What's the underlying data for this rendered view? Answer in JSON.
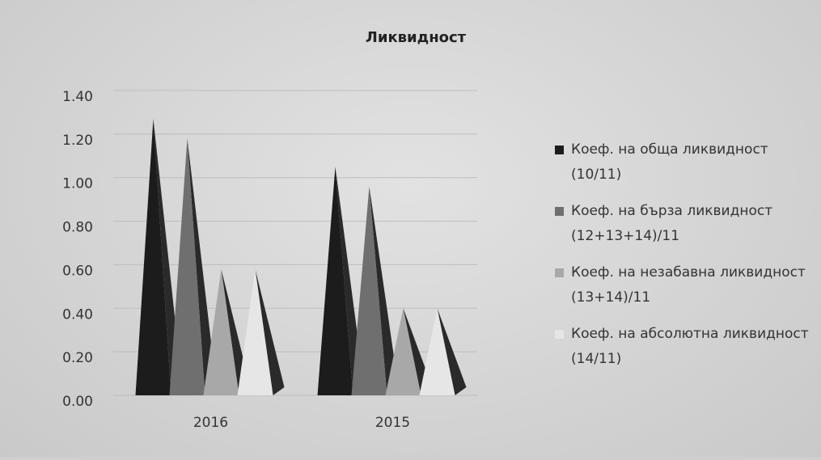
{
  "chart_data": {
    "type": "pyramid",
    "title": "Ликвидност",
    "categories": [
      "2016",
      "2015"
    ],
    "series": [
      {
        "name": "Коеф. на обща ликвидност (10/11)",
        "color": "#1c1c1c",
        "values": [
          1.27,
          1.05
        ]
      },
      {
        "name": "Коеф. на бърза ликвидност (12+13+14)/11",
        "color": "#6f6f6f",
        "values": [
          1.18,
          0.96
        ]
      },
      {
        "name": "Коеф. на незабавна ликвидност (13+14)/11",
        "color": "#a8a8a8",
        "values": [
          0.58,
          0.4
        ]
      },
      {
        "name": "Коеф. на абсолютна ликвидност (14/11)",
        "color": "#e6e6e6",
        "values": [
          0.58,
          0.4
        ]
      }
    ],
    "ylim": [
      0,
      1.4
    ],
    "yticks": [
      {
        "value": 0,
        "label": "0.00"
      },
      {
        "value": 0.2,
        "label": "0.20"
      },
      {
        "value": 0.4,
        "label": "0.40"
      },
      {
        "value": 0.6,
        "label": "0.60"
      },
      {
        "value": 0.8,
        "label": "0.80"
      },
      {
        "value": 1.0,
        "label": "1.00"
      },
      {
        "value": 1.2,
        "label": "1.20"
      },
      {
        "value": 1.4,
        "label": "1.40"
      }
    ],
    "grid": true,
    "legend": "right"
  }
}
